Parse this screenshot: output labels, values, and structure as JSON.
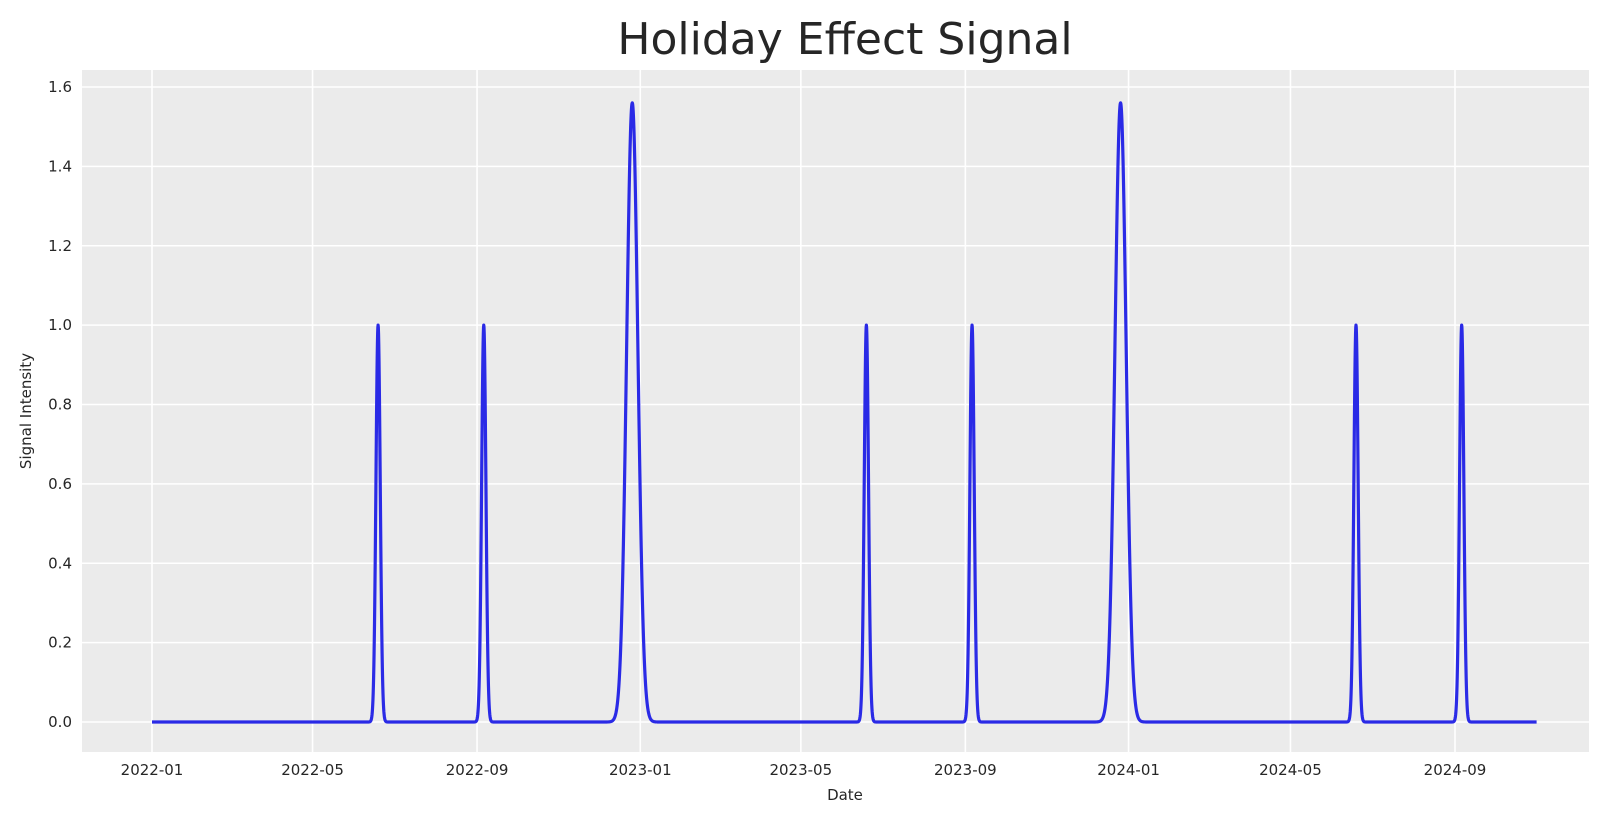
{
  "chart_data": {
    "type": "line",
    "title": "Holiday Effect Signal",
    "xlabel": "Date",
    "ylabel": "Signal Intensity",
    "x_range": [
      "2022-01-01",
      "2024-11-01"
    ],
    "ylim": [
      -0.08,
      1.64
    ],
    "grid": true,
    "background": "#ebebeb",
    "line_color": "#2a2ae6",
    "x_ticks": [
      "2022-01",
      "2022-05",
      "2022-09",
      "2023-01",
      "2023-05",
      "2023-09",
      "2024-01",
      "2024-05",
      "2024-09"
    ],
    "y_ticks": [
      "0.0",
      "0.2",
      "0.4",
      "0.6",
      "0.8",
      "1.0",
      "1.2",
      "1.4",
      "1.6"
    ],
    "series": [
      {
        "baseline": 0.0,
        "peaks": [
          {
            "date": "2022-06-19",
            "value": 1.0
          },
          {
            "date": "2022-09-06",
            "value": 1.0
          },
          {
            "date": "2022-12-26",
            "value": 1.56
          },
          {
            "date": "2023-06-19",
            "value": 1.0
          },
          {
            "date": "2023-09-06",
            "value": 1.0
          },
          {
            "date": "2023-12-26",
            "value": 1.56
          },
          {
            "date": "2024-06-19",
            "value": 1.0
          },
          {
            "date": "2024-09-06",
            "value": 1.0
          }
        ]
      }
    ]
  }
}
